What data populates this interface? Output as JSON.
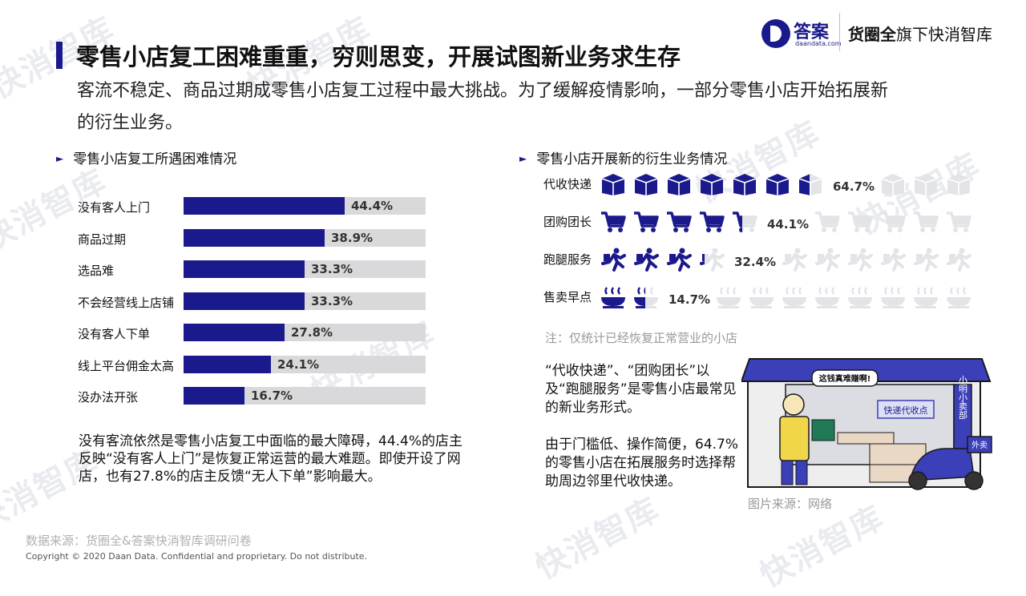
{
  "header": {
    "title": "零售小店复工困难重重，穷则思变，开展试图新业务求生存",
    "subtitle": "客流不稳定、商品过期成零售小店复工过程中最大挑战。为了缓解疫情影响，一部分零售小店开始拓展新的衍生业务。",
    "logo_daan": "答案",
    "logo_daan_sub": "daandata.com",
    "logo_right_bold": "货圈全",
    "logo_right_rest": "旗下快消智库"
  },
  "left_section": {
    "heading": "零售小店复工所遇困难情况",
    "summary": "没有客流依然是零售小店复工中面临的最大障碍，44.4%的店主反映“没有客人上门”是恢复正常运营的最大难题。即使开设了网店，也有27.8%的店主反馈“无人下单”影响最大。"
  },
  "right_section": {
    "heading": "零售小店开展新的衍生业务情况",
    "note": "注：仅统计已经恢复正常营业的小店",
    "summary": "“代收快递”、“团购团长”以及“跑腿服务”是零售小店最常见的新业务形式。\n\n由于门槛低、操作简便，64.7%的零售小店在拓展服务时选择帮助周边邻里代收快递。",
    "image_source": "图片来源：网络",
    "illustration_texts": {
      "speech": "这钱真难赚啊!",
      "shop_sign": "小明小卖部",
      "service_sign": "快递代收点",
      "delivery": "外卖"
    }
  },
  "chart_data": [
    {
      "type": "bar",
      "orientation": "horizontal",
      "title": "零售小店复工所遇困难情况",
      "categories": [
        "没有客人上门",
        "商品过期",
        "选品难",
        "不会经营线上店铺",
        "没有客人下单",
        "线上平台佣金太高",
        "没办法开张"
      ],
      "values": [
        44.4,
        38.9,
        33.3,
        33.3,
        27.8,
        24.1,
        16.7
      ],
      "labels": [
        "44.4%",
        "38.9%",
        "33.3%",
        "33.3%",
        "27.8%",
        "24.1%",
        "16.7%"
      ],
      "unit": "%",
      "xlim": [
        0,
        66.7
      ],
      "colors": {
        "bar": "#1b1a8c",
        "track": "#d9d9dc"
      }
    },
    {
      "type": "pictogram",
      "title": "零售小店开展新的衍生业务情况",
      "categories": [
        "代收快递",
        "团购团长",
        "跑腿服务",
        "售卖早点"
      ],
      "values": [
        64.7,
        44.1,
        32.4,
        14.7
      ],
      "labels": [
        "64.7%",
        "44.1%",
        "32.4%",
        "14.7%"
      ],
      "icons": [
        "box-icon",
        "cart-icon",
        "runner-icon",
        "food-icon"
      ],
      "icons_total": 10,
      "colors": {
        "filled": "#1b1a8c",
        "empty": "#e3e4e8"
      }
    }
  ],
  "footer": {
    "source": "数据来源：货圈全&答案快消智库调研问卷",
    "copyright": "Copyright © 2020 Daan Data. Confidential and proprietary. Do not distribute."
  }
}
